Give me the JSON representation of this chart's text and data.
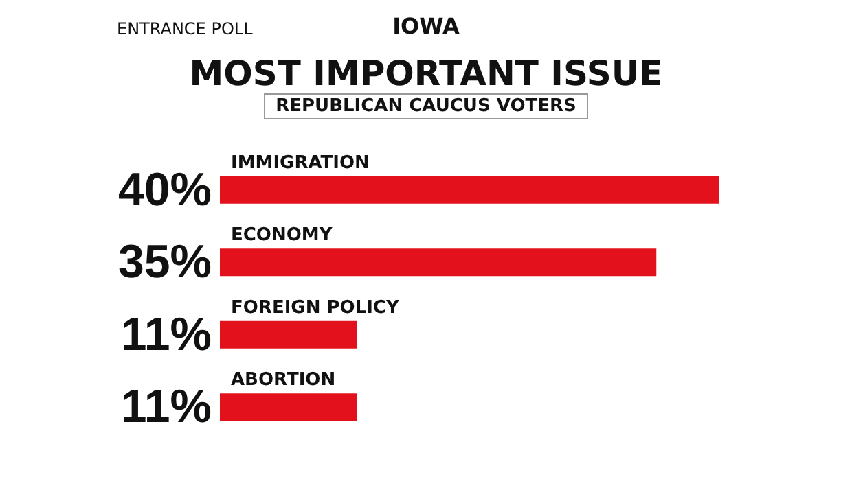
{
  "chart_data": {
    "type": "bar",
    "orientation": "horizontal",
    "title": "MOST IMPORTANT ISSUE",
    "subtitle": "REPUBLICAN CAUCUS VOTERS",
    "annotations": [
      "IOWA",
      "ENTRANCE POLL"
    ],
    "categories": [
      "IMMIGRATION",
      "ECONOMY",
      "FOREIGN POLICY",
      "ABORTION"
    ],
    "values": [
      40,
      35,
      11,
      11
    ],
    "value_labels": [
      "40%",
      "35%",
      "11%",
      "11%"
    ],
    "color": "#e3111b"
  }
}
